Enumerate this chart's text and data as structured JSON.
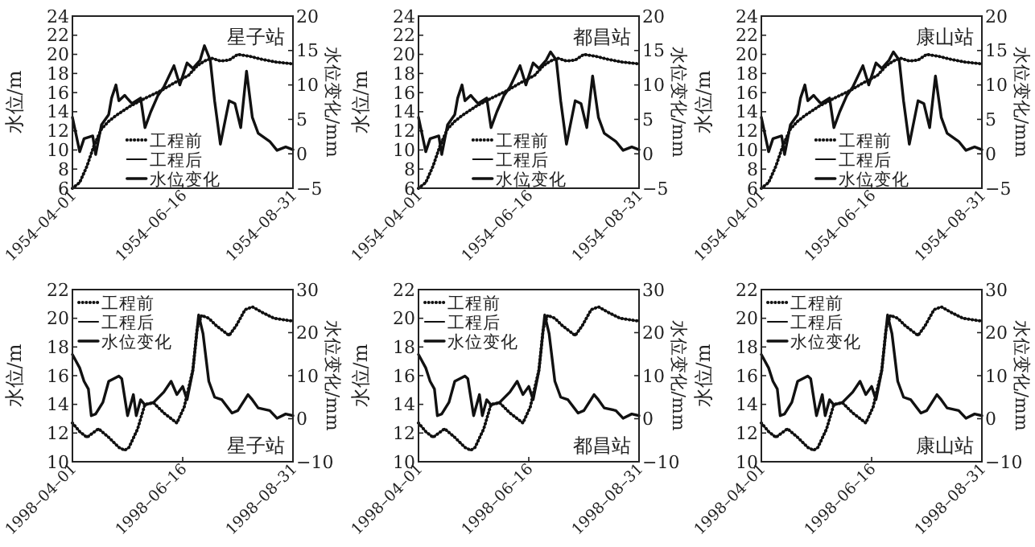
{
  "chart_data": [
    {
      "type": "line",
      "ylabel": "水位/m",
      "y2label": "水位变化/mm",
      "annotations": [
        "星子站"
      ],
      "legend": "bottom",
      "xlim": [
        "1954-04-01",
        "1954-08-31"
      ],
      "xticks": [
        {
          "value": "1954-04-01",
          "label": "1954–04–01"
        },
        {
          "value": "1954-06-16",
          "label": "1954–06–16"
        },
        {
          "value": "1954-08-31",
          "label": "1954–08–31"
        }
      ],
      "ylim": [
        6,
        24
      ],
      "yticks": [
        6,
        8,
        10,
        12,
        14,
        16,
        18,
        20,
        22,
        24
      ],
      "y2lim": [
        -5,
        20
      ],
      "y2ticks": [
        -5,
        0,
        5,
        10,
        15,
        20
      ],
      "series": [
        {
          "name": "工程前",
          "type": "line",
          "line_style": "dotted",
          "color": "#111111",
          "x": [
            "1954-04-01",
            "1954-04-06",
            "1954-04-11",
            "1954-04-16",
            "1954-04-21",
            "1954-04-26",
            "1954-05-01",
            "1954-05-11",
            "1954-05-21",
            "1954-06-01",
            "1954-06-10",
            "1954-06-20",
            "1954-06-26",
            "1954-07-01",
            "1954-07-06",
            "1954-07-12",
            "1954-07-18",
            "1954-07-24",
            "1954-08-01",
            "1954-08-09",
            "1954-08-19",
            "1954-08-31"
          ],
          "values": [
            6.0,
            6.6,
            8.3,
            10.5,
            12.2,
            13.0,
            13.6,
            14.6,
            15.4,
            16.2,
            17.0,
            17.8,
            18.8,
            19.3,
            19.6,
            19.3,
            19.4,
            20.0,
            19.8,
            19.5,
            19.2,
            19.0
          ]
        },
        {
          "name": "工程后",
          "type": "line",
          "line_style": "solid",
          "color": "#111111",
          "x": [
            "1954-04-01",
            "1954-04-06",
            "1954-04-11",
            "1954-04-16",
            "1954-04-21",
            "1954-04-26",
            "1954-05-01",
            "1954-05-11",
            "1954-05-21",
            "1954-06-01",
            "1954-06-10",
            "1954-06-20",
            "1954-06-26",
            "1954-07-01",
            "1954-07-06",
            "1954-07-12",
            "1954-07-18",
            "1954-07-24",
            "1954-08-01",
            "1954-08-09",
            "1954-08-19",
            "1954-08-31"
          ],
          "values": [
            6.0,
            6.6,
            8.3,
            10.5,
            12.2,
            13.0,
            13.6,
            14.6,
            15.4,
            16.2,
            17.0,
            17.8,
            18.8,
            19.3,
            19.6,
            19.3,
            19.4,
            20.0,
            19.8,
            19.5,
            19.2,
            19.0
          ]
        },
        {
          "name": "水位变化",
          "type": "line",
          "axis": "y2",
          "line_style": "solid",
          "color": "#111111",
          "x": [
            "1954-04-01",
            "1954-04-06",
            "1954-04-09",
            "1954-04-15",
            "1954-04-17",
            "1954-04-21",
            "1954-04-26",
            "1954-04-28",
            "1954-05-01",
            "1954-05-03",
            "1954-05-07",
            "1954-05-09",
            "1954-05-12",
            "1954-05-18",
            "1954-05-21",
            "1954-05-25",
            "1954-05-30",
            "1954-06-03",
            "1954-06-10",
            "1954-06-14",
            "1954-06-19",
            "1954-06-23",
            "1954-06-28",
            "1954-07-01",
            "1954-07-05",
            "1954-07-08",
            "1954-07-12",
            "1954-07-18",
            "1954-07-22",
            "1954-07-26",
            "1954-07-30",
            "1954-08-03",
            "1954-08-07",
            "1954-08-15",
            "1954-08-20",
            "1954-08-26",
            "1954-08-31"
          ],
          "values": [
            5.3,
            0.3,
            2.2,
            2.6,
            -0.1,
            4.2,
            5.7,
            8.1,
            10,
            7.7,
            8.5,
            8,
            7.3,
            8.1,
            3.8,
            6.1,
            8.5,
            9.7,
            12.8,
            10,
            13.2,
            12.4,
            13.6,
            15.7,
            13.6,
            7.7,
            1.4,
            7.7,
            7.3,
            3.8,
            12,
            5.3,
            3,
            1.8,
            0.5,
            1,
            0.6
          ]
        }
      ]
    },
    {
      "type": "line",
      "ylabel": "水位/m",
      "y2label": "水位变化/mm",
      "annotations": [
        "都昌站"
      ],
      "legend": "bottom",
      "xlim": [
        "1954-04-01",
        "1954-08-31"
      ],
      "xticks": [
        {
          "value": "1954-04-01",
          "label": "1954–04–01"
        },
        {
          "value": "1954-06-16",
          "label": "1954–06–16"
        },
        {
          "value": "1954-08-31",
          "label": "1954–08–31"
        }
      ],
      "ylim": [
        6,
        24
      ],
      "yticks": [
        6,
        8,
        10,
        12,
        14,
        16,
        18,
        20,
        22,
        24
      ],
      "y2lim": [
        -5,
        20
      ],
      "y2ticks": [
        -5,
        0,
        5,
        10,
        15,
        20
      ],
      "series": [
        {
          "name": "工程前",
          "type": "line",
          "line_style": "dotted",
          "color": "#111111",
          "x": [
            "1954-04-01",
            "1954-04-06",
            "1954-04-11",
            "1954-04-16",
            "1954-04-21",
            "1954-04-26",
            "1954-05-01",
            "1954-05-11",
            "1954-05-21",
            "1954-06-01",
            "1954-06-10",
            "1954-06-20",
            "1954-06-26",
            "1954-07-01",
            "1954-07-06",
            "1954-07-12",
            "1954-07-18",
            "1954-07-24",
            "1954-08-01",
            "1954-08-09",
            "1954-08-19",
            "1954-08-31"
          ],
          "values": [
            6.0,
            6.6,
            8.3,
            10.5,
            12.2,
            13.0,
            13.6,
            14.6,
            15.4,
            16.2,
            17.0,
            17.8,
            18.8,
            19.3,
            19.6,
            19.3,
            19.4,
            20.0,
            19.8,
            19.5,
            19.2,
            19.0
          ]
        },
        {
          "name": "工程后",
          "type": "line",
          "line_style": "solid",
          "color": "#111111",
          "x": [
            "1954-04-01",
            "1954-04-06",
            "1954-04-11",
            "1954-04-16",
            "1954-04-21",
            "1954-04-26",
            "1954-05-01",
            "1954-05-11",
            "1954-05-21",
            "1954-06-01",
            "1954-06-10",
            "1954-06-20",
            "1954-06-26",
            "1954-07-01",
            "1954-07-06",
            "1954-07-12",
            "1954-07-18",
            "1954-07-24",
            "1954-08-01",
            "1954-08-09",
            "1954-08-19",
            "1954-08-31"
          ],
          "values": [
            6.0,
            6.6,
            8.3,
            10.5,
            12.2,
            13.0,
            13.6,
            14.6,
            15.4,
            16.2,
            17.0,
            17.8,
            18.8,
            19.3,
            19.6,
            19.3,
            19.4,
            20.0,
            19.8,
            19.5,
            19.2,
            19.0
          ]
        },
        {
          "name": "水位变化",
          "type": "line",
          "axis": "y2",
          "line_style": "solid",
          "color": "#111111",
          "x": [
            "1954-04-01",
            "1954-04-06",
            "1954-04-09",
            "1954-04-15",
            "1954-04-17",
            "1954-04-21",
            "1954-04-26",
            "1954-04-28",
            "1954-05-01",
            "1954-05-03",
            "1954-05-07",
            "1954-05-09",
            "1954-05-12",
            "1954-05-18",
            "1954-05-21",
            "1954-05-25",
            "1954-05-30",
            "1954-06-03",
            "1954-06-10",
            "1954-06-14",
            "1954-06-19",
            "1954-06-23",
            "1954-06-28",
            "1954-07-01",
            "1954-07-05",
            "1954-07-08",
            "1954-07-12",
            "1954-07-18",
            "1954-07-22",
            "1954-07-26",
            "1954-07-30",
            "1954-08-03",
            "1954-08-07",
            "1954-08-15",
            "1954-08-20",
            "1954-08-26",
            "1954-08-31"
          ],
          "values": [
            5.3,
            0.3,
            2.2,
            2.6,
            -0.1,
            4.2,
            5.7,
            8.1,
            10,
            7.7,
            8.5,
            8,
            7.3,
            8.1,
            3.8,
            6.1,
            8.5,
            9.7,
            12.8,
            10,
            13.2,
            12.4,
            13.6,
            14.8,
            13.6,
            7.7,
            1.4,
            7.7,
            7.3,
            3.8,
            11.3,
            5.3,
            3,
            1.8,
            0.5,
            1,
            0.6
          ]
        }
      ]
    },
    {
      "type": "line",
      "ylabel": "水位/m",
      "y2label": "水位变化/mm",
      "annotations": [
        "康山站"
      ],
      "legend": "bottom",
      "xlim": [
        "1954-04-01",
        "1954-08-31"
      ],
      "xticks": [
        {
          "value": "1954-04-01",
          "label": "1954–04–01"
        },
        {
          "value": "1954-06-16",
          "label": "1954–06–16"
        },
        {
          "value": "1954-08-31",
          "label": "1954–08–31"
        }
      ],
      "ylim": [
        6,
        24
      ],
      "yticks": [
        6,
        8,
        10,
        12,
        14,
        16,
        18,
        20,
        22,
        24
      ],
      "y2lim": [
        -5,
        20
      ],
      "y2ticks": [
        -5,
        0,
        5,
        10,
        15,
        20
      ],
      "series": [
        {
          "name": "工程前",
          "type": "line",
          "line_style": "dotted",
          "color": "#111111",
          "x": [
            "1954-04-01",
            "1954-04-06",
            "1954-04-11",
            "1954-04-16",
            "1954-04-21",
            "1954-04-26",
            "1954-05-01",
            "1954-05-11",
            "1954-05-21",
            "1954-06-01",
            "1954-06-10",
            "1954-06-20",
            "1954-06-26",
            "1954-07-01",
            "1954-07-06",
            "1954-07-12",
            "1954-07-18",
            "1954-07-24",
            "1954-08-01",
            "1954-08-09",
            "1954-08-19",
            "1954-08-31"
          ],
          "values": [
            6.0,
            6.6,
            8.3,
            10.5,
            12.2,
            13.0,
            13.6,
            14.6,
            15.4,
            16.2,
            17.0,
            17.8,
            18.8,
            19.3,
            19.6,
            19.3,
            19.4,
            20.0,
            19.8,
            19.5,
            19.2,
            19.0
          ]
        },
        {
          "name": "工程后",
          "type": "line",
          "line_style": "solid",
          "color": "#111111",
          "x": [
            "1954-04-01",
            "1954-04-06",
            "1954-04-11",
            "1954-04-16",
            "1954-04-21",
            "1954-04-26",
            "1954-05-01",
            "1954-05-11",
            "1954-05-21",
            "1954-06-01",
            "1954-06-10",
            "1954-06-20",
            "1954-06-26",
            "1954-07-01",
            "1954-07-06",
            "1954-07-12",
            "1954-07-18",
            "1954-07-24",
            "1954-08-01",
            "1954-08-09",
            "1954-08-19",
            "1954-08-31"
          ],
          "values": [
            6.0,
            6.6,
            8.3,
            10.5,
            12.2,
            13.0,
            13.6,
            14.6,
            15.4,
            16.2,
            17.0,
            17.8,
            18.8,
            19.3,
            19.6,
            19.3,
            19.4,
            20.0,
            19.8,
            19.5,
            19.2,
            19.0
          ]
        },
        {
          "name": "水位变化",
          "type": "line",
          "axis": "y2",
          "line_style": "solid",
          "color": "#111111",
          "x": [
            "1954-04-01",
            "1954-04-06",
            "1954-04-09",
            "1954-04-15",
            "1954-04-17",
            "1954-04-21",
            "1954-04-26",
            "1954-04-28",
            "1954-05-01",
            "1954-05-03",
            "1954-05-07",
            "1954-05-09",
            "1954-05-12",
            "1954-05-18",
            "1954-05-21",
            "1954-05-25",
            "1954-05-30",
            "1954-06-03",
            "1954-06-10",
            "1954-06-14",
            "1954-06-19",
            "1954-06-23",
            "1954-06-28",
            "1954-07-01",
            "1954-07-05",
            "1954-07-08",
            "1954-07-12",
            "1954-07-18",
            "1954-07-22",
            "1954-07-26",
            "1954-07-30",
            "1954-08-03",
            "1954-08-07",
            "1954-08-15",
            "1954-08-20",
            "1954-08-26",
            "1954-08-31"
          ],
          "values": [
            5.3,
            0.3,
            2.2,
            2.6,
            -0.1,
            4.2,
            5.7,
            8.1,
            10,
            7.7,
            8.5,
            8,
            7.3,
            8.1,
            3.8,
            6.1,
            8.5,
            9.7,
            12.8,
            10,
            13.2,
            12.4,
            13.6,
            14.8,
            13.6,
            7.7,
            1.4,
            7.7,
            7.3,
            3.8,
            11.3,
            5.3,
            3,
            1.8,
            0.5,
            1,
            0.6
          ]
        }
      ]
    },
    {
      "type": "line",
      "ylabel": "水位/m",
      "y2label": "水位变化/mm",
      "annotations": [
        "星子站"
      ],
      "legend": "top left",
      "xlim": [
        "1998-04-01",
        "1998-08-31"
      ],
      "xticks": [
        {
          "value": "1998-04-01",
          "label": "1998–04–01"
        },
        {
          "value": "1998-06-16",
          "label": "1998–06–16"
        },
        {
          "value": "1998-08-31",
          "label": "1998–08–31"
        }
      ],
      "ylim": [
        10,
        22
      ],
      "yticks": [
        10,
        12,
        14,
        16,
        18,
        20,
        22
      ],
      "y2lim": [
        -10,
        30
      ],
      "y2ticks": [
        -10,
        0,
        10,
        20,
        30
      ],
      "series": [
        {
          "name": "工程前",
          "type": "line",
          "line_style": "dotted",
          "color": "#111111",
          "x": [
            "1998-04-01",
            "1998-04-06",
            "1998-04-11",
            "1998-04-19",
            "1998-04-26",
            "1998-05-03",
            "1998-05-07",
            "1998-05-10",
            "1998-05-16",
            "1998-05-21",
            "1998-05-27",
            "1998-06-03",
            "1998-06-12",
            "1998-06-17",
            "1998-06-23",
            "1998-06-26",
            "1998-06-29",
            "1998-07-04",
            "1998-07-09",
            "1998-07-18",
            "1998-07-23",
            "1998-07-29",
            "1998-08-03",
            "1998-08-10",
            "1998-08-18",
            "1998-08-31"
          ],
          "values": [
            12.7,
            12.1,
            11.7,
            12.3,
            11.7,
            11.0,
            10.8,
            11.0,
            12.3,
            14.0,
            14.1,
            13.4,
            12.7,
            13.8,
            16.4,
            19.3,
            20.2,
            20.0,
            19.5,
            18.8,
            19.5,
            20.6,
            20.8,
            20.4,
            20.0,
            19.8
          ]
        },
        {
          "name": "工程后",
          "type": "line",
          "line_style": "solid",
          "color": "#111111",
          "x": [
            "1998-04-01",
            "1998-04-06",
            "1998-04-11",
            "1998-04-19",
            "1998-04-26",
            "1998-05-03",
            "1998-05-07",
            "1998-05-10",
            "1998-05-16",
            "1998-05-21",
            "1998-05-27",
            "1998-06-03",
            "1998-06-12",
            "1998-06-17",
            "1998-06-23",
            "1998-06-26",
            "1998-06-29",
            "1998-07-04",
            "1998-07-09",
            "1998-07-18",
            "1998-07-23",
            "1998-07-29",
            "1998-08-03",
            "1998-08-10",
            "1998-08-18",
            "1998-08-31"
          ],
          "values": [
            12.7,
            12.1,
            11.7,
            12.3,
            11.7,
            11.0,
            10.8,
            11.0,
            12.3,
            14.0,
            14.1,
            13.4,
            12.7,
            13.8,
            16.4,
            19.3,
            20.2,
            20.0,
            19.5,
            18.8,
            19.5,
            20.6,
            20.8,
            20.4,
            20.0,
            19.8
          ]
        },
        {
          "name": "水位变化",
          "type": "line",
          "axis": "y2",
          "line_style": "solid",
          "color": "#111111",
          "x": [
            "1998-04-01",
            "1998-04-06",
            "1998-04-09",
            "1998-04-12",
            "1998-04-14",
            "1998-04-17",
            "1998-04-22",
            "1998-04-26",
            "1998-05-03",
            "1998-05-05",
            "1998-05-09",
            "1998-05-13",
            "1998-05-15",
            "1998-05-18",
            "1998-05-21",
            "1998-05-27",
            "1998-06-03",
            "1998-06-08",
            "1998-06-12",
            "1998-06-16",
            "1998-06-19",
            "1998-06-23",
            "1998-06-27",
            "1998-06-30",
            "1998-07-04",
            "1998-07-08",
            "1998-07-13",
            "1998-07-20",
            "1998-07-24",
            "1998-07-31",
            "1998-08-03",
            "1998-08-07",
            "1998-08-15",
            "1998-08-20",
            "1998-08-26",
            "1998-08-31"
          ],
          "values": [
            14.9,
            11.8,
            8.7,
            6.9,
            0.7,
            1.1,
            3.8,
            8.7,
            9.9,
            9.3,
            0.7,
            5.6,
            0.7,
            4.4,
            3.2,
            3.8,
            6.2,
            8.7,
            5.6,
            7.5,
            4.4,
            11.2,
            24.1,
            19.8,
            8.7,
            5.0,
            4.4,
            1.3,
            1.9,
            5.6,
            4.4,
            2.5,
            1.9,
            0.1,
            1.1,
            0.7
          ]
        }
      ]
    },
    {
      "type": "line",
      "ylabel": "水位/m",
      "y2label": "水位变化/mm",
      "annotations": [
        "都昌站"
      ],
      "legend": "top left",
      "xlim": [
        "1998-04-01",
        "1998-08-31"
      ],
      "xticks": [
        {
          "value": "1998-04-01",
          "label": "1998–04–01"
        },
        {
          "value": "1998-06-16",
          "label": "1998–06–16"
        },
        {
          "value": "1998-08-31",
          "label": "1998–08–31"
        }
      ],
      "ylim": [
        10,
        22
      ],
      "yticks": [
        10,
        12,
        14,
        16,
        18,
        20,
        22
      ],
      "y2lim": [
        -10,
        30
      ],
      "y2ticks": [
        -10,
        0,
        10,
        20,
        30
      ],
      "series": [
        {
          "name": "工程前",
          "type": "line",
          "line_style": "dotted",
          "color": "#111111",
          "x": [
            "1998-04-01",
            "1998-04-06",
            "1998-04-11",
            "1998-04-19",
            "1998-04-26",
            "1998-05-03",
            "1998-05-07",
            "1998-05-10",
            "1998-05-16",
            "1998-05-21",
            "1998-05-27",
            "1998-06-03",
            "1998-06-12",
            "1998-06-17",
            "1998-06-23",
            "1998-06-26",
            "1998-06-29",
            "1998-07-04",
            "1998-07-09",
            "1998-07-18",
            "1998-07-23",
            "1998-07-29",
            "1998-08-03",
            "1998-08-10",
            "1998-08-18",
            "1998-08-31"
          ],
          "values": [
            12.7,
            12.1,
            11.7,
            12.3,
            11.7,
            11.0,
            10.8,
            11.0,
            12.3,
            14.0,
            14.1,
            13.4,
            12.7,
            13.8,
            16.4,
            19.3,
            20.2,
            20.0,
            19.5,
            18.8,
            19.5,
            20.6,
            20.8,
            20.4,
            20.0,
            19.8
          ]
        },
        {
          "name": "工程后",
          "type": "line",
          "line_style": "solid",
          "color": "#111111",
          "x": [
            "1998-04-01",
            "1998-04-06",
            "1998-04-11",
            "1998-04-19",
            "1998-04-26",
            "1998-05-03",
            "1998-05-07",
            "1998-05-10",
            "1998-05-16",
            "1998-05-21",
            "1998-05-27",
            "1998-06-03",
            "1998-06-12",
            "1998-06-17",
            "1998-06-23",
            "1998-06-26",
            "1998-06-29",
            "1998-07-04",
            "1998-07-09",
            "1998-07-18",
            "1998-07-23",
            "1998-07-29",
            "1998-08-03",
            "1998-08-10",
            "1998-08-18",
            "1998-08-31"
          ],
          "values": [
            12.7,
            12.1,
            11.7,
            12.3,
            11.7,
            11.0,
            10.8,
            11.0,
            12.3,
            14.0,
            14.1,
            13.4,
            12.7,
            13.8,
            16.4,
            19.3,
            20.2,
            20.0,
            19.5,
            18.8,
            19.5,
            20.6,
            20.8,
            20.4,
            20.0,
            19.8
          ]
        },
        {
          "name": "水位变化",
          "type": "line",
          "axis": "y2",
          "line_style": "solid",
          "color": "#111111",
          "x": [
            "1998-04-01",
            "1998-04-06",
            "1998-04-09",
            "1998-04-12",
            "1998-04-14",
            "1998-04-17",
            "1998-04-22",
            "1998-04-26",
            "1998-05-03",
            "1998-05-05",
            "1998-05-09",
            "1998-05-13",
            "1998-05-15",
            "1998-05-18",
            "1998-05-21",
            "1998-05-27",
            "1998-06-03",
            "1998-06-08",
            "1998-06-12",
            "1998-06-16",
            "1998-06-19",
            "1998-06-23",
            "1998-06-27",
            "1998-06-30",
            "1998-07-04",
            "1998-07-08",
            "1998-07-13",
            "1998-07-20",
            "1998-07-24",
            "1998-07-31",
            "1998-08-03",
            "1998-08-07",
            "1998-08-15",
            "1998-08-20",
            "1998-08-26",
            "1998-08-31"
          ],
          "values": [
            14.9,
            11.8,
            8.7,
            6.9,
            0.7,
            1.1,
            3.8,
            8.7,
            9.9,
            9.3,
            0.7,
            5.6,
            0.7,
            4.4,
            3.2,
            3.8,
            6.2,
            8.7,
            5.6,
            7.5,
            4.4,
            11.2,
            24.1,
            19.8,
            8.7,
            5.0,
            4.4,
            1.3,
            1.9,
            5.6,
            4.4,
            2.5,
            1.9,
            0.1,
            1.1,
            0.7
          ]
        }
      ]
    },
    {
      "type": "line",
      "ylabel": "水位/m",
      "y2label": "水位变化/mm",
      "annotations": [
        "康山站"
      ],
      "legend": "top left",
      "xlim": [
        "1998-04-01",
        "1998-08-31"
      ],
      "xticks": [
        {
          "value": "1998-04-01",
          "label": "1998–04–01"
        },
        {
          "value": "1998-06-16",
          "label": "1998–06–16"
        },
        {
          "value": "1998-08-31",
          "label": "1998–08–31"
        }
      ],
      "ylim": [
        10,
        22
      ],
      "yticks": [
        10,
        12,
        14,
        16,
        18,
        20,
        22
      ],
      "y2lim": [
        -10,
        30
      ],
      "y2ticks": [
        -10,
        0,
        10,
        20,
        30
      ],
      "series": [
        {
          "name": "工程前",
          "type": "line",
          "line_style": "dotted",
          "color": "#111111",
          "x": [
            "1998-04-01",
            "1998-04-06",
            "1998-04-11",
            "1998-04-19",
            "1998-04-26",
            "1998-05-03",
            "1998-05-07",
            "1998-05-10",
            "1998-05-16",
            "1998-05-21",
            "1998-05-27",
            "1998-06-03",
            "1998-06-12",
            "1998-06-17",
            "1998-06-23",
            "1998-06-26",
            "1998-06-29",
            "1998-07-04",
            "1998-07-09",
            "1998-07-18",
            "1998-07-23",
            "1998-07-29",
            "1998-08-03",
            "1998-08-10",
            "1998-08-18",
            "1998-08-31"
          ],
          "values": [
            12.7,
            12.1,
            11.7,
            12.3,
            11.7,
            11.0,
            10.8,
            11.0,
            12.3,
            14.0,
            14.1,
            13.4,
            12.7,
            13.8,
            16.4,
            19.3,
            20.2,
            20.0,
            19.5,
            18.8,
            19.5,
            20.6,
            20.8,
            20.4,
            20.0,
            19.8
          ]
        },
        {
          "name": "工程后",
          "type": "line",
          "line_style": "solid",
          "color": "#111111",
          "x": [
            "1998-04-01",
            "1998-04-06",
            "1998-04-11",
            "1998-04-19",
            "1998-04-26",
            "1998-05-03",
            "1998-05-07",
            "1998-05-10",
            "1998-05-16",
            "1998-05-21",
            "1998-05-27",
            "1998-06-03",
            "1998-06-12",
            "1998-06-17",
            "1998-06-23",
            "1998-06-26",
            "1998-06-29",
            "1998-07-04",
            "1998-07-09",
            "1998-07-18",
            "1998-07-23",
            "1998-07-29",
            "1998-08-03",
            "1998-08-10",
            "1998-08-18",
            "1998-08-31"
          ],
          "values": [
            12.7,
            12.1,
            11.7,
            12.3,
            11.7,
            11.0,
            10.8,
            11.0,
            12.3,
            14.0,
            14.1,
            13.4,
            12.7,
            13.8,
            16.4,
            19.3,
            20.2,
            20.0,
            19.5,
            18.8,
            19.5,
            20.6,
            20.8,
            20.4,
            20.0,
            19.8
          ]
        },
        {
          "name": "水位变化",
          "type": "line",
          "axis": "y2",
          "line_style": "solid",
          "color": "#111111",
          "x": [
            "1998-04-01",
            "1998-04-06",
            "1998-04-09",
            "1998-04-12",
            "1998-04-14",
            "1998-04-17",
            "1998-04-22",
            "1998-04-26",
            "1998-05-03",
            "1998-05-05",
            "1998-05-09",
            "1998-05-13",
            "1998-05-15",
            "1998-05-18",
            "1998-05-21",
            "1998-05-27",
            "1998-06-03",
            "1998-06-08",
            "1998-06-12",
            "1998-06-16",
            "1998-06-19",
            "1998-06-23",
            "1998-06-27",
            "1998-06-30",
            "1998-07-04",
            "1998-07-08",
            "1998-07-13",
            "1998-07-20",
            "1998-07-24",
            "1998-07-31",
            "1998-08-03",
            "1998-08-07",
            "1998-08-15",
            "1998-08-20",
            "1998-08-26",
            "1998-08-31"
          ],
          "values": [
            14.9,
            11.8,
            8.7,
            6.9,
            0.7,
            1.1,
            3.8,
            8.7,
            9.9,
            9.3,
            0.7,
            5.6,
            0.7,
            4.4,
            3.2,
            3.8,
            6.2,
            8.7,
            5.6,
            7.5,
            4.4,
            11.2,
            24.1,
            19.8,
            8.7,
            5.0,
            4.4,
            1.3,
            1.9,
            5.6,
            4.4,
            2.5,
            1.9,
            0.1,
            1.1,
            0.7
          ]
        }
      ]
    }
  ]
}
